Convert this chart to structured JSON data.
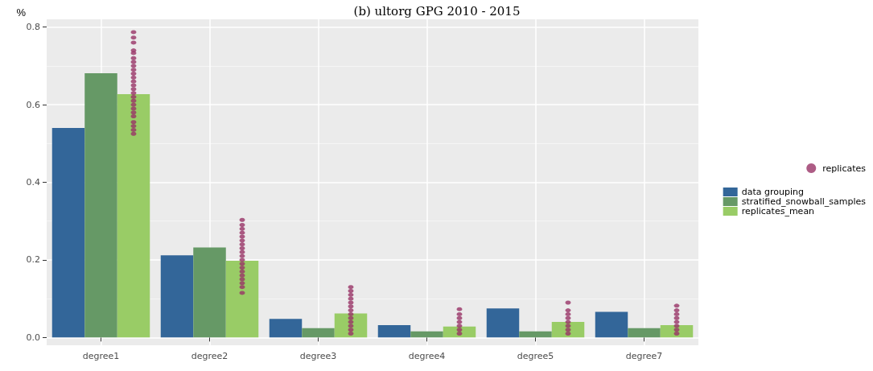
{
  "chart_data": {
    "type": "bar",
    "title": "(b) ultorg GPG 2010 - 2015",
    "ylabel": "%",
    "categories": [
      "degree1",
      "degree2",
      "degree3",
      "degree4",
      "degree5",
      "degree7"
    ],
    "series": [
      {
        "name": "data grouping",
        "color": "#336699",
        "values": [
          0.54,
          0.212,
          0.048,
          0.032,
          0.075,
          0.066
        ]
      },
      {
        "name": "stratified_snowball_samples",
        "color": "#669966",
        "values": [
          0.681,
          0.232,
          0.024,
          0.016,
          0.016,
          0.024
        ]
      },
      {
        "name": "replicates_mean",
        "color": "#99cc66",
        "values": [
          0.627,
          0.198,
          0.062,
          0.028,
          0.04,
          0.032
        ]
      },
      {
        "name": "replicates",
        "type": "scatter",
        "color": "#993366",
        "marker": "circle",
        "x": [
          "degree1",
          "degree1",
          "degree1",
          "degree1",
          "degree1",
          "degree1",
          "degree1",
          "degree1",
          "degree1",
          "degree1",
          "degree1",
          "degree1",
          "degree1",
          "degree1",
          "degree1",
          "degree1",
          "degree1",
          "degree1",
          "degree1",
          "degree1",
          "degree1",
          "degree1",
          "degree1",
          "degree1",
          "degree1",
          "degree2",
          "degree2",
          "degree2",
          "degree2",
          "degree2",
          "degree2",
          "degree2",
          "degree2",
          "degree2",
          "degree2",
          "degree2",
          "degree2",
          "degree2",
          "degree2",
          "degree2",
          "degree2",
          "degree2",
          "degree2",
          "degree2",
          "degree3",
          "degree3",
          "degree3",
          "degree3",
          "degree3",
          "degree3",
          "degree3",
          "degree3",
          "degree3",
          "degree3",
          "degree3",
          "degree3",
          "degree3",
          "degree4",
          "degree4",
          "degree4",
          "degree4",
          "degree4",
          "degree4",
          "degree4",
          "degree5",
          "degree5",
          "degree5",
          "degree5",
          "degree5",
          "degree5",
          "degree5",
          "degree5",
          "degree7",
          "degree7",
          "degree7",
          "degree7",
          "degree7",
          "degree7",
          "degree7",
          "degree7"
        ],
        "values": [
          0.787,
          0.773,
          0.76,
          0.74,
          0.733,
          0.72,
          0.71,
          0.7,
          0.69,
          0.68,
          0.67,
          0.66,
          0.65,
          0.64,
          0.63,
          0.62,
          0.61,
          0.6,
          0.59,
          0.58,
          0.57,
          0.555,
          0.545,
          0.535,
          0.525,
          0.303,
          0.29,
          0.28,
          0.27,
          0.26,
          0.25,
          0.24,
          0.23,
          0.22,
          0.21,
          0.2,
          0.19,
          0.18,
          0.17,
          0.16,
          0.15,
          0.14,
          0.13,
          0.115,
          0.13,
          0.12,
          0.11,
          0.1,
          0.09,
          0.08,
          0.07,
          0.06,
          0.05,
          0.04,
          0.03,
          0.02,
          0.01,
          0.073,
          0.06,
          0.05,
          0.04,
          0.03,
          0.02,
          0.01,
          0.09,
          0.07,
          0.06,
          0.05,
          0.04,
          0.03,
          0.02,
          0.01,
          0.082,
          0.07,
          0.06,
          0.05,
          0.04,
          0.03,
          0.02,
          0.01
        ]
      }
    ],
    "ylim": [
      -0.02,
      0.82
    ],
    "yticks": [
      {
        "value": 0,
        "label": "0.0"
      },
      {
        "value": 0.2,
        "label": "0.2"
      },
      {
        "value": 0.4,
        "label": "0.4"
      },
      {
        "value": 0.6,
        "label": "0.6"
      },
      {
        "value": 0.8,
        "label": "0.8"
      }
    ],
    "grid": true,
    "legend": "right"
  }
}
